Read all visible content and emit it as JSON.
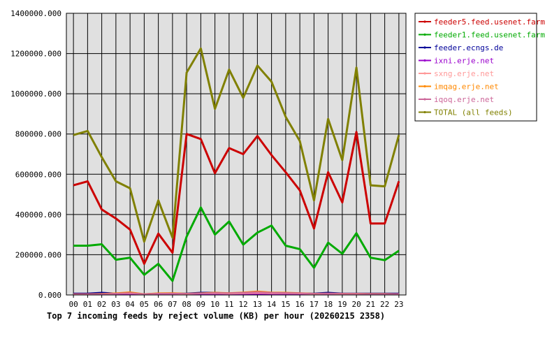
{
  "chart_data": {
    "type": "line",
    "title": "Top 7 incoming feeds by reject volume (KB) per hour (20260215 2358)",
    "x": [
      "00",
      "01",
      "02",
      "03",
      "04",
      "05",
      "06",
      "07",
      "08",
      "09",
      "10",
      "11",
      "12",
      "13",
      "14",
      "15",
      "16",
      "17",
      "18",
      "19",
      "20",
      "21",
      "22",
      "23"
    ],
    "y_ticks": [
      {
        "value": 0,
        "label": "0.000"
      },
      {
        "value": 200000,
        "label": "200000.000"
      },
      {
        "value": 400000,
        "label": "400000.000"
      },
      {
        "value": 600000,
        "label": "600000.000"
      },
      {
        "value": 800000,
        "label": "800000.000"
      },
      {
        "value": 1000000,
        "label": "1000000.000"
      },
      {
        "value": 1200000,
        "label": "1200000.000"
      },
      {
        "value": 1400000,
        "label": "1400000.000"
      }
    ],
    "ylim": [
      0,
      1400000
    ],
    "grid": true,
    "legend_position": "right",
    "plot_background": "#e0e0e0",
    "series": [
      {
        "name": "feeder5.feed.usenet.farm",
        "color": "#cc0000",
        "width": 3,
        "values": [
          545000,
          565000,
          425000,
          380000,
          325000,
          155000,
          305000,
          210000,
          800000,
          775000,
          605000,
          730000,
          700000,
          790000,
          695000,
          610000,
          520000,
          330000,
          610000,
          460000,
          810000,
          355000,
          355000,
          565000
        ]
      },
      {
        "name": "feeder1.feed.usenet.farm",
        "color": "#00aa00",
        "width": 3,
        "values": [
          245000,
          245000,
          252000,
          175000,
          185000,
          100000,
          155000,
          70000,
          290000,
          435000,
          300000,
          365000,
          250000,
          310000,
          345000,
          245000,
          228000,
          135000,
          260000,
          205000,
          307000,
          185000,
          173000,
          220000
        ]
      },
      {
        "name": "feeder.ecngs.de",
        "color": "#000099",
        "width": 2,
        "values": [
          8000,
          8000,
          12000,
          8000,
          8000,
          5000,
          8000,
          8000,
          8000,
          12000,
          12000,
          8000,
          8000,
          10000,
          8000,
          8000,
          8000,
          8000,
          12000,
          8000,
          8000,
          8000,
          8000,
          8000
        ]
      },
      {
        "name": "ixni.erje.net",
        "color": "#9900cc",
        "width": 2,
        "values": [
          4000,
          4000,
          4000,
          4000,
          4000,
          4000,
          4000,
          4000,
          4000,
          4000,
          4000,
          4000,
          4000,
          4000,
          4000,
          4000,
          4000,
          4000,
          4000,
          4000,
          4000,
          4000,
          4000,
          4000
        ]
      },
      {
        "name": "sxng.erje.net",
        "color": "#ff9999",
        "width": 2,
        "values": [
          3000,
          3000,
          4000,
          6000,
          8000,
          4000,
          6000,
          6000,
          5000,
          7000,
          8000,
          6000,
          8000,
          10000,
          8000,
          8000,
          7000,
          5000,
          6000,
          5000,
          5000,
          4000,
          4000,
          4000
        ]
      },
      {
        "name": "imqag.erje.net",
        "color": "#ff8800",
        "width": 2,
        "values": [
          4000,
          4000,
          6000,
          9000,
          14000,
          5000,
          9000,
          10000,
          7000,
          9000,
          12000,
          10000,
          13000,
          18000,
          13000,
          12000,
          10000,
          7000,
          8000,
          7000,
          7000,
          6000,
          6000,
          5000
        ]
      },
      {
        "name": "iqoq.erje.net",
        "color": "#cc6699",
        "width": 2,
        "values": [
          3000,
          3000,
          4000,
          7000,
          10000,
          4000,
          7000,
          8000,
          6000,
          8000,
          10000,
          9000,
          11000,
          15000,
          11000,
          10000,
          9000,
          6000,
          7000,
          6000,
          6000,
          5000,
          5000,
          4000
        ]
      },
      {
        "name": "TOTAL (all feeds)",
        "color": "#808000",
        "width": 3,
        "values": [
          795000,
          815000,
          685000,
          565000,
          530000,
          265000,
          470000,
          285000,
          1105000,
          1225000,
          925000,
          1120000,
          980000,
          1140000,
          1060000,
          885000,
          765000,
          470000,
          875000,
          670000,
          1130000,
          545000,
          540000,
          795000
        ]
      }
    ]
  }
}
